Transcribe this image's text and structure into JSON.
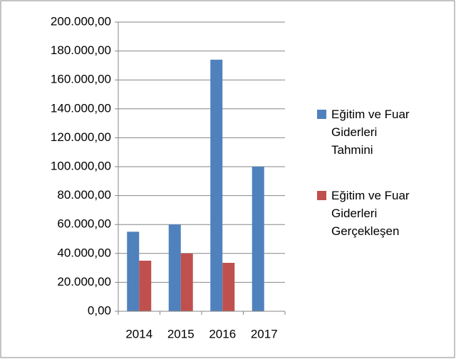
{
  "chart_data": {
    "type": "bar",
    "categories": [
      "2014",
      "2015",
      "2016",
      "2017"
    ],
    "series": [
      {
        "name": "Eğitim ve Fuar Giderleri Tahmini",
        "color": "#4f81bd",
        "values": [
          55000,
          60000,
          174000,
          100000
        ]
      },
      {
        "name": "Eğitim ve Fuar Giderleri Gerçekleşen",
        "color": "#c0504d",
        "values": [
          35000,
          40000,
          33500,
          null
        ]
      }
    ],
    "ylim": [
      0,
      200000
    ],
    "yticks": [
      {
        "value": 0,
        "label": "0,00"
      },
      {
        "value": 20000,
        "label": "20.000,00"
      },
      {
        "value": 40000,
        "label": "40.000,00"
      },
      {
        "value": 60000,
        "label": "60.000,00"
      },
      {
        "value": 80000,
        "label": "80.000,00"
      },
      {
        "value": 100000,
        "label": "100.000,00"
      },
      {
        "value": 120000,
        "label": "120.000,00"
      },
      {
        "value": 140000,
        "label": "140.000,00"
      },
      {
        "value": 160000,
        "label": "160.000,00"
      },
      {
        "value": 180000,
        "label": "180.000,00"
      },
      {
        "value": 200000,
        "label": "200.000,00"
      }
    ],
    "grid": true,
    "legend": "right"
  }
}
